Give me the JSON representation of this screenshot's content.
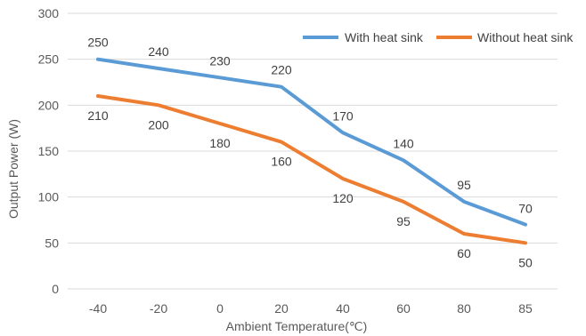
{
  "chart_data": {
    "type": "line",
    "title": "",
    "xlabel": "Ambient Temperature(℃)",
    "ylabel": "Output Power (W)",
    "categories": [
      "-40",
      "-20",
      "0",
      "20",
      "40",
      "60",
      "80",
      "85"
    ],
    "ylim": [
      0,
      300
    ],
    "yticks": [
      "0",
      "50",
      "100",
      "150",
      "200",
      "250",
      "300"
    ],
    "grid": true,
    "legend_position": "top-right",
    "series": [
      {
        "name": "With heat sink",
        "color": "#5B9BD5",
        "values": [
          250,
          240,
          230,
          220,
          170,
          140,
          95,
          70
        ],
        "labels": [
          "250",
          "240",
          "230",
          "220",
          "170",
          "140",
          "95",
          "70"
        ]
      },
      {
        "name": "Without heat sink",
        "color": "#ED7D31",
        "values": [
          210,
          200,
          180,
          160,
          120,
          95,
          60,
          50
        ],
        "labels": [
          "210",
          "200",
          "180",
          "160",
          "120",
          "95",
          "60",
          "50"
        ]
      }
    ]
  }
}
